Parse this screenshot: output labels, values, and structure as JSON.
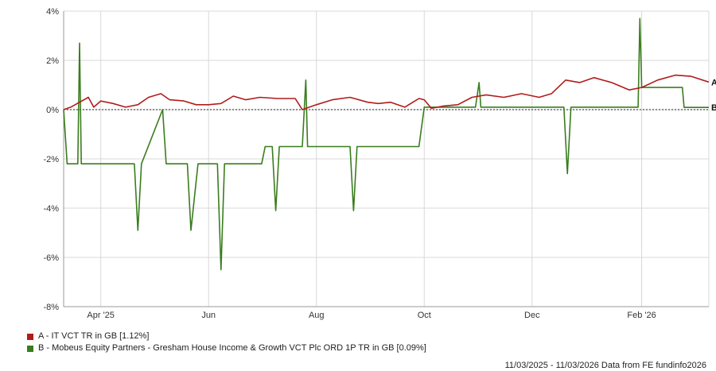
{
  "chart_data": {
    "type": "line",
    "ylim": [
      -8,
      4
    ],
    "yticks": [
      4,
      2,
      0,
      -2,
      -4,
      -6,
      -8
    ],
    "ytick_labels": [
      "4%",
      "2%",
      "0%",
      "-2%",
      "-4%",
      "-6%",
      "-8%"
    ],
    "xlim": [
      "2025-03-11",
      "2026-03-11"
    ],
    "xticks": [
      {
        "date": "2025-04-01",
        "label": "Apr '25"
      },
      {
        "date": "2025-06-01",
        "label": "Jun"
      },
      {
        "date": "2025-08-01",
        "label": "Aug"
      },
      {
        "date": "2025-10-01",
        "label": "Oct"
      },
      {
        "date": "2025-12-01",
        "label": "Dec"
      },
      {
        "date": "2026-02-01",
        "label": "Feb '26"
      }
    ],
    "grid": true,
    "series": [
      {
        "name": "A - IT VCT TR in GB [1.12%]",
        "end_label": "A",
        "color": "#b01c1c",
        "points": [
          [
            "2025-03-11",
            0.0
          ],
          [
            "2025-03-15",
            0.1
          ],
          [
            "2025-03-20",
            0.3
          ],
          [
            "2025-03-25",
            0.5
          ],
          [
            "2025-03-28",
            0.1
          ],
          [
            "2025-04-01",
            0.35
          ],
          [
            "2025-04-08",
            0.25
          ],
          [
            "2025-04-15",
            0.1
          ],
          [
            "2025-04-22",
            0.2
          ],
          [
            "2025-04-28",
            0.5
          ],
          [
            "2025-05-05",
            0.65
          ],
          [
            "2025-05-10",
            0.4
          ],
          [
            "2025-05-18",
            0.35
          ],
          [
            "2025-05-25",
            0.2
          ],
          [
            "2025-06-01",
            0.2
          ],
          [
            "2025-06-08",
            0.25
          ],
          [
            "2025-06-15",
            0.55
          ],
          [
            "2025-06-22",
            0.4
          ],
          [
            "2025-06-30",
            0.5
          ],
          [
            "2025-07-10",
            0.45
          ],
          [
            "2025-07-20",
            0.45
          ],
          [
            "2025-07-24",
            0.0
          ],
          [
            "2025-08-01",
            0.2
          ],
          [
            "2025-08-10",
            0.4
          ],
          [
            "2025-08-20",
            0.5
          ],
          [
            "2025-08-30",
            0.3
          ],
          [
            "2025-09-05",
            0.25
          ],
          [
            "2025-09-12",
            0.3
          ],
          [
            "2025-09-20",
            0.1
          ],
          [
            "2025-09-28",
            0.45
          ],
          [
            "2025-10-01",
            0.4
          ],
          [
            "2025-10-05",
            0.05
          ],
          [
            "2025-10-12",
            0.15
          ],
          [
            "2025-10-20",
            0.2
          ],
          [
            "2025-10-28",
            0.5
          ],
          [
            "2025-11-05",
            0.6
          ],
          [
            "2025-11-15",
            0.5
          ],
          [
            "2025-11-25",
            0.65
          ],
          [
            "2025-12-05",
            0.5
          ],
          [
            "2025-12-12",
            0.65
          ],
          [
            "2025-12-20",
            1.2
          ],
          [
            "2025-12-28",
            1.1
          ],
          [
            "2026-01-05",
            1.3
          ],
          [
            "2026-01-15",
            1.1
          ],
          [
            "2026-01-25",
            0.8
          ],
          [
            "2026-02-01",
            0.9
          ],
          [
            "2026-02-10",
            1.2
          ],
          [
            "2026-02-20",
            1.4
          ],
          [
            "2026-03-01",
            1.35
          ],
          [
            "2026-03-11",
            1.12
          ]
        ]
      },
      {
        "name": "B - Mobeus Equity Partners - Gresham House Income & Growth VCT Plc ORD 1P TR in GB [0.09%]",
        "end_label": "B",
        "color": "#3a7d1e",
        "points": [
          [
            "2025-03-11",
            0.0
          ],
          [
            "2025-03-13",
            -2.2
          ],
          [
            "2025-03-19",
            -2.2
          ],
          [
            "2025-03-20",
            2.7
          ],
          [
            "2025-03-21",
            -2.2
          ],
          [
            "2025-04-20",
            -2.2
          ],
          [
            "2025-04-22",
            -4.9
          ],
          [
            "2025-04-24",
            -2.2
          ],
          [
            "2025-05-06",
            0.0
          ],
          [
            "2025-05-08",
            -2.2
          ],
          [
            "2025-05-20",
            -2.2
          ],
          [
            "2025-05-22",
            -4.9
          ],
          [
            "2025-05-26",
            -2.2
          ],
          [
            "2025-06-06",
            -2.2
          ],
          [
            "2025-06-08",
            -6.5
          ],
          [
            "2025-06-10",
            -2.2
          ],
          [
            "2025-07-01",
            -2.2
          ],
          [
            "2025-07-03",
            -1.5
          ],
          [
            "2025-07-07",
            -1.5
          ],
          [
            "2025-07-09",
            -4.1
          ],
          [
            "2025-07-11",
            -1.5
          ],
          [
            "2025-07-24",
            -1.5
          ],
          [
            "2025-07-26",
            1.2
          ],
          [
            "2025-07-27",
            -1.5
          ],
          [
            "2025-08-20",
            -1.5
          ],
          [
            "2025-08-22",
            -4.1
          ],
          [
            "2025-08-24",
            -1.5
          ],
          [
            "2025-09-28",
            -1.5
          ],
          [
            "2025-10-01",
            0.1
          ],
          [
            "2025-10-30",
            0.1
          ],
          [
            "2025-11-01",
            1.1
          ],
          [
            "2025-11-02",
            0.1
          ],
          [
            "2025-12-19",
            0.1
          ],
          [
            "2025-12-21",
            -2.6
          ],
          [
            "2025-12-23",
            0.1
          ],
          [
            "2026-01-30",
            0.1
          ],
          [
            "2026-01-31",
            3.7
          ],
          [
            "2026-02-01",
            0.9
          ],
          [
            "2026-02-24",
            0.9
          ],
          [
            "2026-02-25",
            0.09
          ],
          [
            "2026-03-11",
            0.09
          ]
        ]
      }
    ]
  },
  "footer": "11/03/2025 - 11/03/2026 Data from FE fundinfo2026"
}
